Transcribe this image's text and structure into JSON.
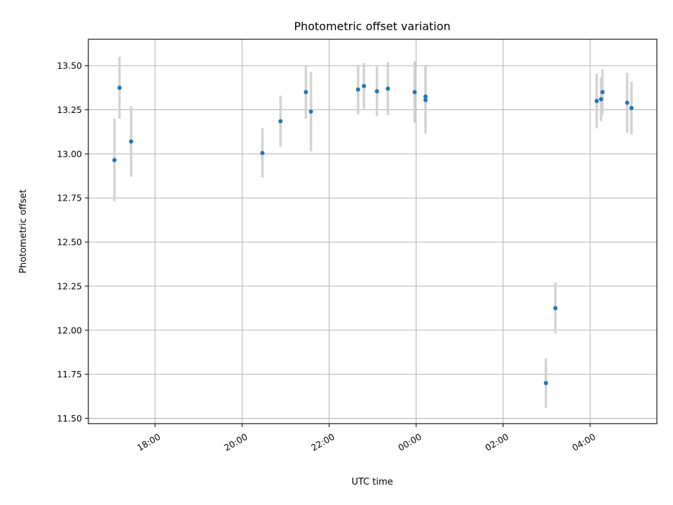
{
  "chart_data": {
    "type": "scatter",
    "title": "Photometric offset variation",
    "xlabel": "UTC time",
    "ylabel": "Photometric offset",
    "x_unit": "UTC time (HH:MM), night spanning midnight",
    "ylim": [
      11.47,
      13.65
    ],
    "xlim": [
      "16:28",
      "05:32"
    ],
    "grid": true,
    "y_ticks": [
      "11.50",
      "11.75",
      "12.00",
      "12.25",
      "12.50",
      "12.75",
      "13.00",
      "13.25",
      "13.50"
    ],
    "x_ticks": [
      "18:00",
      "20:00",
      "22:00",
      "00:00",
      "02:00",
      "04:00"
    ],
    "marker_color": "#1f77b4",
    "errorbar_color": "#d3d3d3",
    "points": [
      {
        "x": "17:04",
        "y": 12.965,
        "err": 0.235
      },
      {
        "x": "17:11",
        "y": 13.375,
        "err": 0.175
      },
      {
        "x": "17:27",
        "y": 13.07,
        "err": 0.2
      },
      {
        "x": "20:28",
        "y": 13.005,
        "err": 0.14
      },
      {
        "x": "20:53",
        "y": 13.185,
        "err": 0.145
      },
      {
        "x": "21:28",
        "y": 13.35,
        "err": 0.15
      },
      {
        "x": "21:35",
        "y": 13.24,
        "err": 0.225
      },
      {
        "x": "22:40",
        "y": 13.365,
        "err": 0.14
      },
      {
        "x": "22:48",
        "y": 13.385,
        "err": 0.13
      },
      {
        "x": "23:06",
        "y": 13.355,
        "err": 0.14
      },
      {
        "x": "23:21",
        "y": 13.37,
        "err": 0.15
      },
      {
        "x": "23:58",
        "y": 13.35,
        "err": 0.175
      },
      {
        "x": "00:13",
        "y": 13.325,
        "err": 0.175
      },
      {
        "x": "00:13",
        "y": 13.305,
        "err": 0.19
      },
      {
        "x": "02:59",
        "y": 11.7,
        "err": 0.14
      },
      {
        "x": "03:12",
        "y": 12.125,
        "err": 0.145
      },
      {
        "x": "04:09",
        "y": 13.3,
        "err": 0.155
      },
      {
        "x": "04:15",
        "y": 13.31,
        "err": 0.125
      },
      {
        "x": "04:17",
        "y": 13.35,
        "err": 0.13
      },
      {
        "x": "04:51",
        "y": 13.29,
        "err": 0.17
      },
      {
        "x": "04:57",
        "y": 13.26,
        "err": 0.15
      }
    ]
  }
}
